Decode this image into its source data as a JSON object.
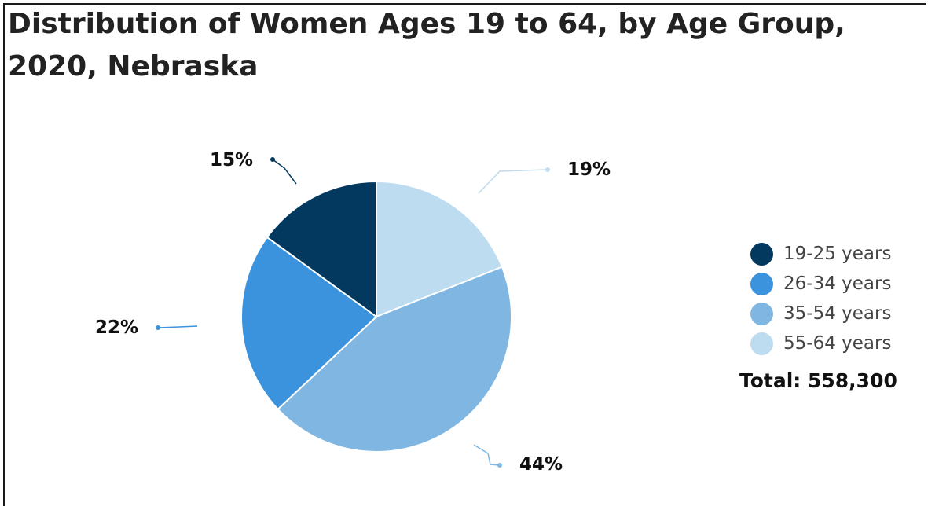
{
  "chart_data": {
    "type": "pie",
    "title": "Distribution of Women Ages 19 to 64, by Age Group, 2020, Nebraska",
    "categories": [
      "19-25 years",
      "26-34 years",
      "35-54 years",
      "55-64 years"
    ],
    "values": [
      15,
      22,
      44,
      19
    ],
    "value_labels": [
      "15%",
      "22%",
      "44%",
      "19%"
    ],
    "colors": [
      "#03385f",
      "#3b93dd",
      "#7fb7e2",
      "#bddcf0"
    ],
    "legend_position": "right",
    "total_label": "Total: 558,300"
  }
}
